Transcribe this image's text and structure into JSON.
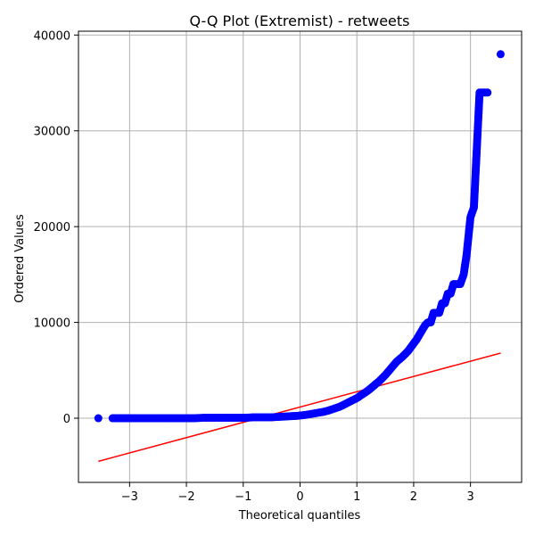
{
  "chart_data": {
    "type": "scatter",
    "title": "Q-Q Plot (Extremist) - retweets",
    "xlabel": "Theoretical quantiles",
    "ylabel": "Ordered Values",
    "xlim": [
      -3.9,
      3.9
    ],
    "ylim": [
      -6700,
      40400
    ],
    "x_ticks": [
      -3,
      -2,
      -1,
      0,
      1,
      2,
      3
    ],
    "x_tick_labels": [
      "−3",
      "−2",
      "−1",
      "0",
      "1",
      "2",
      "3"
    ],
    "y_ticks": [
      0,
      10000,
      20000,
      30000,
      40000
    ],
    "y_tick_labels": [
      "0",
      "10000",
      "20000",
      "30000",
      "40000"
    ],
    "grid": true,
    "colors": {
      "points": "#0000ff",
      "fit_line": "#ff0000"
    },
    "series": [
      {
        "kind": "points",
        "x": [
          -3.55,
          -3.3,
          -3.18,
          -3.05,
          -2.9,
          -2.75,
          -2.6,
          -2.45,
          -2.3,
          -2.15,
          -2.0,
          -1.85,
          -1.7,
          -1.55,
          -1.4,
          -1.25,
          -1.1,
          -0.95,
          -0.8,
          -0.65,
          -0.5,
          -0.35,
          -0.2,
          -0.05,
          0.1,
          0.25,
          0.4,
          0.5,
          0.6,
          0.7,
          0.8,
          0.9,
          1.0,
          1.1,
          1.2,
          1.3,
          1.4,
          1.5,
          1.6,
          1.7,
          1.8,
          1.9,
          2.0,
          2.05,
          2.1,
          2.15,
          2.2,
          2.25,
          2.3,
          2.35,
          2.4,
          2.45,
          2.5,
          2.55,
          2.6,
          2.65,
          2.7,
          2.75,
          2.82,
          2.88,
          2.93,
          3.0,
          3.06,
          3.16,
          3.3,
          3.53
        ],
        "y": [
          0,
          0,
          0,
          0,
          0,
          0,
          0,
          0,
          0,
          0,
          0,
          0,
          50,
          50,
          50,
          50,
          50,
          50,
          100,
          100,
          100,
          150,
          200,
          250,
          350,
          500,
          650,
          800,
          1000,
          1200,
          1500,
          1800,
          2100,
          2500,
          2900,
          3400,
          3900,
          4500,
          5200,
          5900,
          6400,
          7000,
          7800,
          8200,
          8700,
          9200,
          9700,
          10000,
          10000,
          11000,
          11000,
          11000,
          12000,
          12000,
          13000,
          13000,
          14000,
          14000,
          14000,
          15000,
          17000,
          21000,
          22000,
          34000,
          34000,
          38000
        ]
      },
      {
        "kind": "line",
        "x": [
          -3.55,
          3.53
        ],
        "y": [
          -4500,
          6800
        ]
      }
    ]
  }
}
